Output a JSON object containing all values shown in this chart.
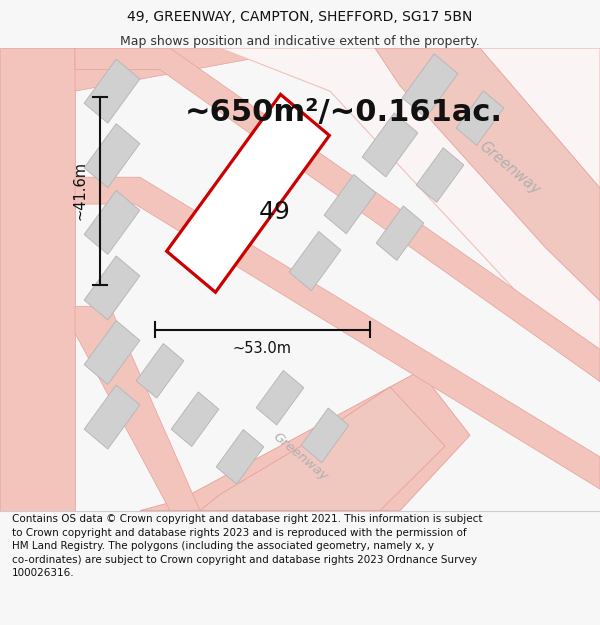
{
  "title_line1": "49, GREENWAY, CAMPTON, SHEFFORD, SG17 5BN",
  "title_line2": "Map shows position and indicative extent of the property.",
  "area_text": "~650m²/~0.161ac.",
  "dim_width": "~53.0m",
  "dim_height": "~41.6m",
  "plot_number": "49",
  "footer_text": "Contains OS data © Crown copyright and database right 2021. This information is subject\nto Crown copyright and database rights 2023 and is reproduced with the permission of\nHM Land Registry. The polygons (including the associated geometry, namely x, y\nco-ordinates) are subject to Crown copyright and database rights 2023 Ordnance Survey\n100026316.",
  "bg_color": "#f7f7f7",
  "map_bg": "#ffffff",
  "street_fill": "#f2c4bc",
  "street_edge": "#e8a099",
  "building_fill": "#d0d0d0",
  "building_edge": "#b8b8b8",
  "plot_color": "#cc0000",
  "dim_color": "#111111",
  "greenway_color": "#b0b0b0",
  "text_color": "#111111",
  "title_fontsize": 10,
  "subtitle_fontsize": 9,
  "area_fontsize": 22,
  "dim_fontsize": 10.5,
  "plot_num_fontsize": 18,
  "footer_fontsize": 7.5
}
